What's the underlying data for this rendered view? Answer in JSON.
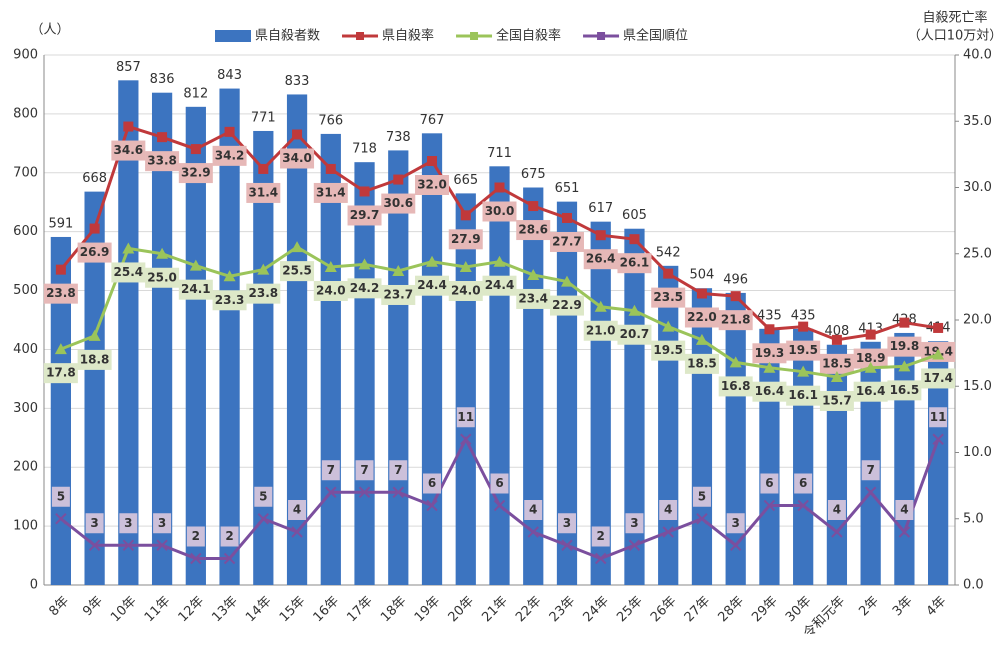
{
  "chart_data": {
    "type": "bar-line",
    "y_label": "（人）",
    "y2_label": "自殺死亡率",
    "y2_label_sub": "（人口10万対）",
    "categories": [
      "8年",
      "9年",
      "10年",
      "11年",
      "12年",
      "13年",
      "14年",
      "15年",
      "16年",
      "17年",
      "18年",
      "19年",
      "20年",
      "21年",
      "22年",
      "23年",
      "24年",
      "25年",
      "26年",
      "27年",
      "28年",
      "29年",
      "30年",
      "令和元年",
      "2年",
      "3年",
      "4年"
    ],
    "series": [
      {
        "name": "県自殺者数",
        "type": "bar",
        "color": "#3c74c0",
        "values": [
          591,
          668,
          857,
          836,
          812,
          843,
          771,
          833,
          766,
          718,
          738,
          767,
          665,
          711,
          675,
          651,
          617,
          605,
          542,
          504,
          496,
          435,
          435,
          408,
          413,
          428,
          414
        ]
      },
      {
        "name": "県自殺率",
        "type": "line",
        "axis": "y2",
        "color": "#c0393b",
        "values": [
          23.8,
          26.9,
          34.6,
          33.8,
          32.9,
          34.2,
          31.4,
          34.0,
          31.4,
          29.7,
          30.6,
          32.0,
          27.9,
          30.0,
          28.6,
          27.7,
          26.4,
          26.1,
          23.5,
          22.0,
          21.8,
          19.3,
          19.5,
          18.5,
          18.9,
          19.8,
          19.4
        ],
        "value_labels": [
          "23.8",
          "26.9",
          "34.6",
          "33.8",
          "32.9",
          "34.2",
          "31.4",
          "34.0",
          "31.4",
          "29.7",
          "30.6",
          "32.0",
          "27.9",
          "30.0",
          "28.6",
          "27.7",
          "26.4",
          "26.1",
          "23.5",
          "22.0",
          "21.8",
          "19.3",
          "19.5",
          "18.5",
          "18.9",
          "19.8",
          "19.4"
        ]
      },
      {
        "name": "全国自殺率",
        "type": "line",
        "axis": "y2",
        "color": "#9bc45a",
        "values": [
          17.8,
          18.8,
          25.4,
          25.0,
          24.1,
          23.3,
          23.8,
          25.5,
          24.0,
          24.2,
          23.7,
          24.4,
          24.0,
          24.4,
          23.4,
          22.9,
          21.0,
          20.7,
          19.5,
          18.5,
          16.8,
          16.4,
          16.1,
          15.7,
          16.4,
          16.5,
          17.4
        ],
        "value_labels": [
          "17.8",
          "18.8",
          "25.4",
          "25.0",
          "24.1",
          "23.3",
          "23.8",
          "25.5",
          "24.0",
          "24.2",
          "23.7",
          "24.4",
          "24.0",
          "24.4",
          "23.4",
          "22.9",
          "21.0",
          "20.7",
          "19.5",
          "18.5",
          "16.8",
          "16.4",
          "16.1",
          "15.7",
          "16.4",
          "16.5",
          "17.4"
        ]
      },
      {
        "name": "県全国順位",
        "type": "line",
        "axis": "y2",
        "color": "#7b4f9e",
        "values": [
          5,
          3,
          3,
          3,
          2,
          2,
          5,
          4,
          7,
          7,
          7,
          6,
          11,
          6,
          4,
          3,
          2,
          3,
          4,
          5,
          3,
          6,
          6,
          4,
          7,
          4,
          11
        ]
      }
    ],
    "ylim": [
      0,
      900
    ],
    "yticks": [
      0,
      100,
      200,
      300,
      400,
      500,
      600,
      700,
      800,
      900
    ],
    "y2lim": [
      0,
      40
    ],
    "y2ticks": [
      {
        "value": 0,
        "label": "0.0"
      },
      {
        "value": 5,
        "label": "5.0"
      },
      {
        "value": 10,
        "label": "10.0"
      },
      {
        "value": 15,
        "label": "15.0"
      },
      {
        "value": 20,
        "label": "20.0"
      },
      {
        "value": 25,
        "label": "25.0"
      },
      {
        "value": 30,
        "label": "30.0"
      },
      {
        "value": 35,
        "label": "35.0"
      },
      {
        "value": 40,
        "label": "40.0"
      }
    ],
    "grid": true
  }
}
